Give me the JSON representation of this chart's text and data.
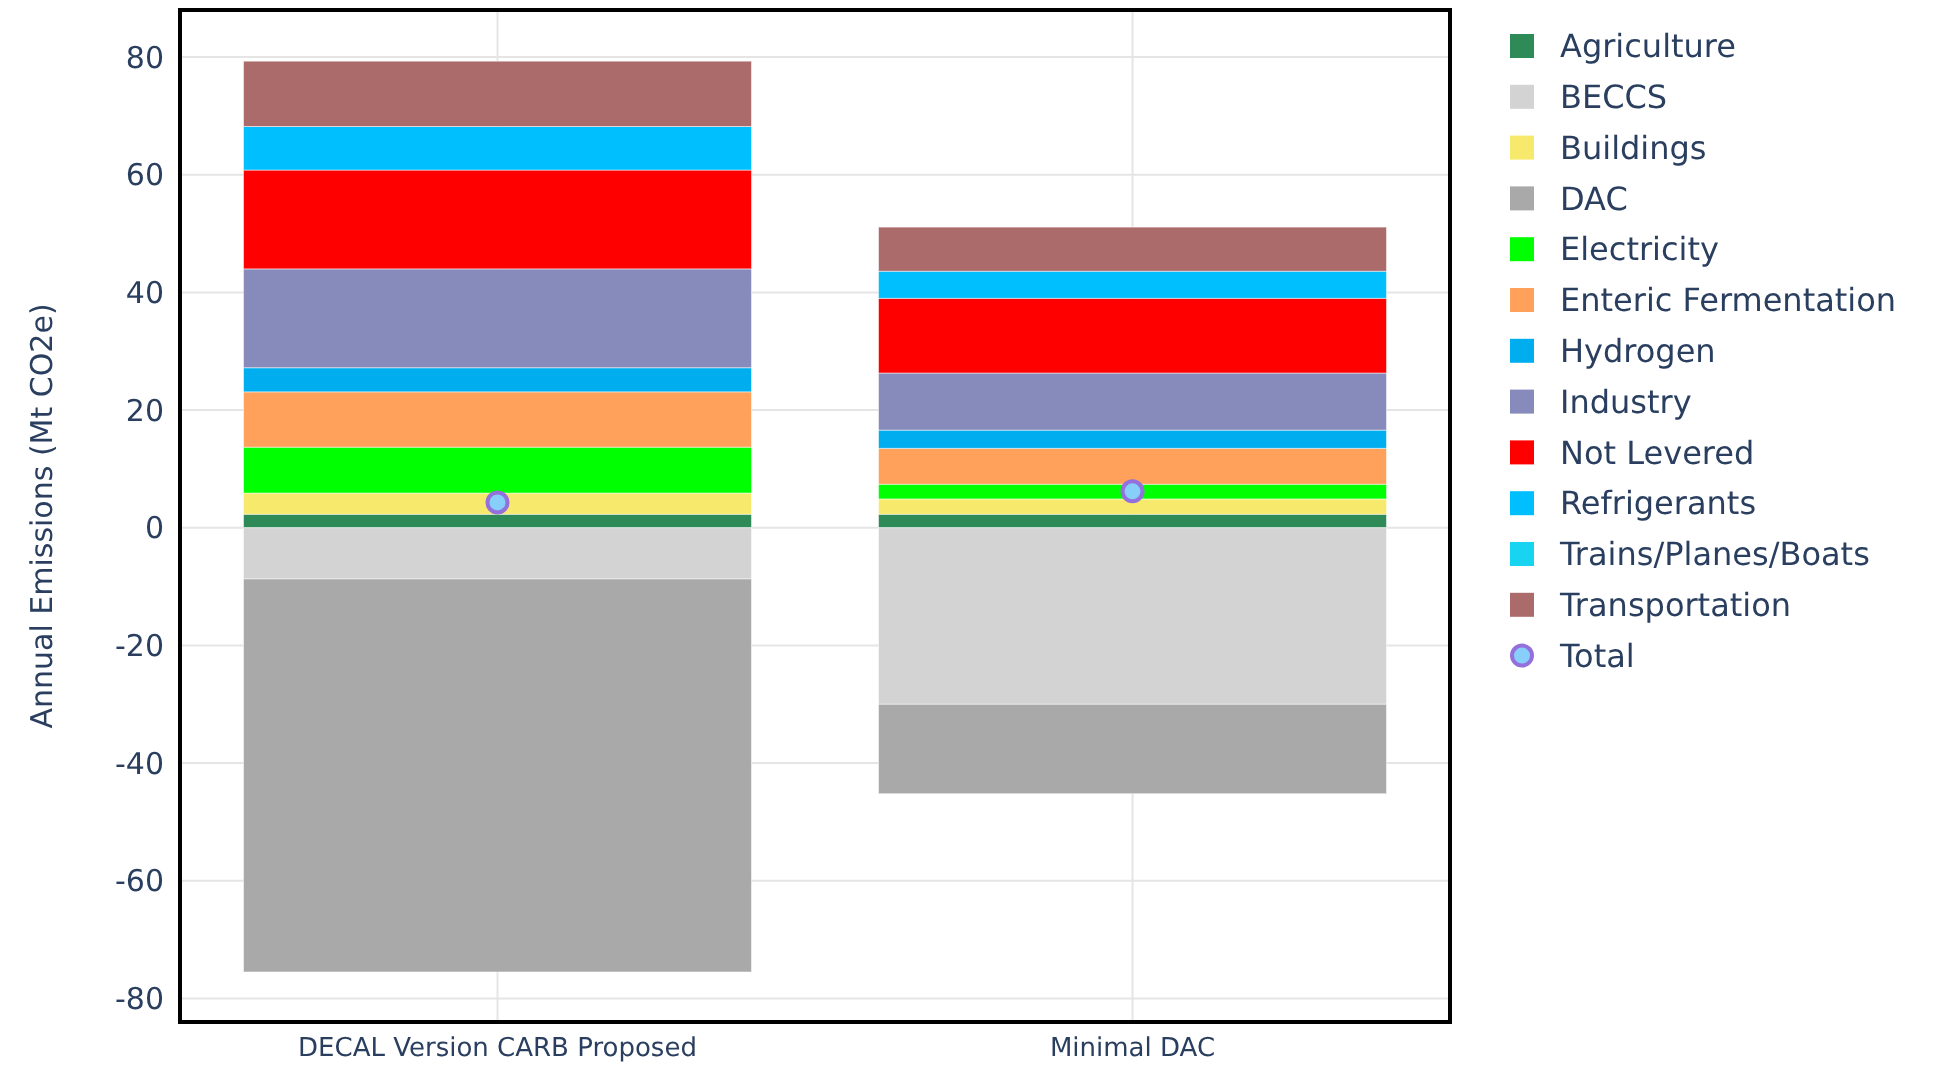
{
  "chart_data": {
    "type": "bar",
    "stacked": true,
    "ylabel": "Annual Emissions (Mt CO2e)",
    "categories": [
      "DECAL Version CARB Proposed",
      "Minimal DAC"
    ],
    "ylim": [
      -84,
      88
    ],
    "yticks": [
      -80,
      -60,
      -40,
      -20,
      0,
      20,
      40,
      60,
      80
    ],
    "grid": true,
    "legend": "right",
    "series": [
      {
        "name": "Agriculture",
        "color": "#2e8b57",
        "values": [
          2.3,
          2.3
        ]
      },
      {
        "name": "BECCS",
        "color": "#d3d3d3",
        "values": [
          -8.7,
          -30.0
        ]
      },
      {
        "name": "Buildings",
        "color": "#f7e96b",
        "values": [
          3.6,
          2.6
        ]
      },
      {
        "name": "DAC",
        "color": "#a9a9a9",
        "values": [
          -66.8,
          -15.2
        ]
      },
      {
        "name": "Electricity",
        "color": "#00ff00",
        "values": [
          7.8,
          2.5
        ]
      },
      {
        "name": "Enteric Fermentation",
        "color": "#ffa15a",
        "values": [
          9.4,
          6.1
        ]
      },
      {
        "name": "Hydrogen",
        "color": "#00aeef",
        "values": [
          4.1,
          3.1
        ]
      },
      {
        "name": "Industry",
        "color": "#878bbb",
        "values": [
          16.8,
          9.7
        ]
      },
      {
        "name": "Not Levered",
        "color": "#ff0000",
        "values": [
          16.8,
          12.7
        ]
      },
      {
        "name": "Refrigerants",
        "color": "#00bfff",
        "values": [
          7.4,
          4.6
        ]
      },
      {
        "name": "Trains/Planes/Boats",
        "color": "#17d4f0",
        "values": [
          0,
          0
        ]
      },
      {
        "name": "Transportation",
        "color": "#ab6b6b",
        "values": [
          11.1,
          7.5
        ]
      },
      {
        "name": "Total",
        "type": "scatter",
        "marker": "circle",
        "color": "#87cefa",
        "x": [
          "DECAL Version CARB Proposed",
          "Minimal DAC"
        ],
        "values": [
          4.3,
          6.2
        ]
      }
    ]
  }
}
